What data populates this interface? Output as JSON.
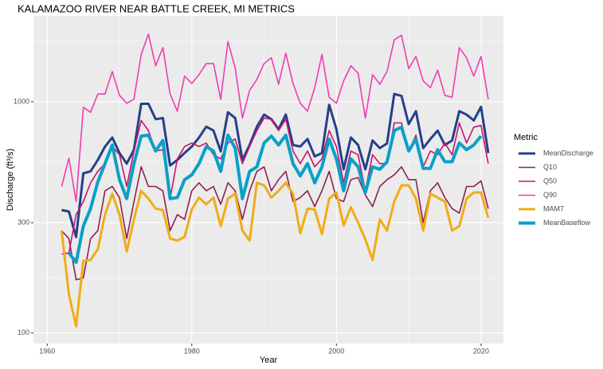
{
  "chart_data": {
    "type": "line",
    "title": "KALAMAZOO RIVER NEAR BATTLE CREEK, MI  METRICS",
    "xlabel": "Year",
    "ylabel": "Discharge (ft³/s)",
    "legend_title": "Metric",
    "legend_position": "right",
    "log_y": true,
    "grid": true,
    "xlim": [
      1958.1,
      2023.1
    ],
    "ylim": [
      90,
      2350
    ],
    "xticks": [
      1960,
      1980,
      2000,
      2020
    ],
    "yticks": [
      100,
      300,
      1000
    ],
    "x": [
      1962,
      1963,
      1964,
      1965,
      1966,
      1967,
      1968,
      1969,
      1970,
      1971,
      1972,
      1973,
      1974,
      1975,
      1976,
      1977,
      1978,
      1979,
      1980,
      1981,
      1982,
      1983,
      1984,
      1985,
      1986,
      1987,
      1988,
      1989,
      1990,
      1991,
      1992,
      1993,
      1994,
      1995,
      1996,
      1997,
      1998,
      1999,
      2000,
      2001,
      2002,
      2003,
      2004,
      2005,
      2006,
      2007,
      2008,
      2009,
      2010,
      2011,
      2012,
      2013,
      2014,
      2015,
      2016,
      2017,
      2018,
      2019,
      2020,
      2021
    ],
    "series": [
      {
        "name": "MeanDischarge",
        "color": "#253f8a",
        "linewidth": 3,
        "values": [
          340,
          335,
          260,
          490,
          500,
          560,
          640,
          700,
          600,
          540,
          620,
          980,
          980,
          840,
          850,
          530,
          560,
          600,
          640,
          700,
          780,
          750,
          610,
          900,
          850,
          560,
          650,
          780,
          880,
          840,
          760,
          880,
          650,
          640,
          690,
          580,
          600,
          970,
          760,
          510,
          700,
          650,
          510,
          680,
          630,
          660,
          1080,
          1060,
          800,
          910,
          630,
          690,
          750,
          650,
          680,
          910,
          880,
          830,
          950,
          600
        ]
      },
      {
        "name": "Q10",
        "color": "#8b2252",
        "linewidth": 1.6,
        "values": [
          277,
          256,
          170,
          173,
          256,
          277,
          412,
          430,
          385,
          256,
          370,
          523,
          430,
          430,
          412,
          277,
          325,
          310,
          412,
          446,
          412,
          430,
          360,
          446,
          412,
          310,
          412,
          500,
          523,
          412,
          460,
          500,
          370,
          385,
          412,
          352,
          412,
          500,
          381,
          370,
          460,
          470,
          395,
          352,
          430,
          460,
          483,
          523,
          460,
          460,
          300,
          412,
          446,
          385,
          345,
          330,
          430,
          430,
          455,
          345
        ]
      },
      {
        "name": "Q50",
        "color": "#c8146e",
        "linewidth": 1.6,
        "values": [
          219,
          222,
          325,
          370,
          446,
          500,
          540,
          640,
          590,
          430,
          612,
          830,
          750,
          612,
          620,
          381,
          566,
          640,
          663,
          640,
          663,
          590,
          566,
          663,
          690,
          540,
          640,
          750,
          850,
          840,
          750,
          840,
          612,
          540,
          612,
          523,
          566,
          750,
          640,
          446,
          612,
          590,
          412,
          590,
          540,
          540,
          810,
          810,
          612,
          717,
          523,
          612,
          590,
          663,
          590,
          810,
          663,
          776,
          790,
          540
        ]
      },
      {
        "name": "Q90",
        "color": "#f03cb4",
        "linewidth": 1.6,
        "values": [
          430,
          570,
          370,
          946,
          900,
          1080,
          1080,
          1350,
          1065,
          985,
          1025,
          1600,
          1960,
          1430,
          1713,
          1080,
          909,
          1290,
          1200,
          1310,
          1462,
          1462,
          1025,
          1820,
          1400,
          850,
          1120,
          1248,
          1462,
          1550,
          1190,
          1620,
          1200,
          985,
          909,
          1150,
          1600,
          1045,
          985,
          1230,
          1430,
          1330,
          850,
          1310,
          1190,
          1350,
          1850,
          1940,
          1390,
          1570,
          1230,
          1150,
          1370,
          1065,
          1045,
          1713,
          1550,
          1290,
          1570,
          1025
        ]
      },
      {
        "name": "MAM7",
        "color": "#f0ac16",
        "linewidth": 3,
        "values": [
          277,
          147,
          107,
          205,
          207,
          230,
          325,
          400,
          325,
          225,
          310,
          412,
          381,
          345,
          340,
          256,
          251,
          260,
          342,
          385,
          360,
          385,
          290,
          381,
          400,
          277,
          251,
          446,
          435,
          385,
          412,
          446,
          400,
          270,
          345,
          342,
          268,
          381,
          405,
          292,
          350,
          300,
          254,
          207,
          310,
          277,
          370,
          435,
          435,
          381,
          277,
          400,
          385,
          370,
          277,
          290,
          381,
          405,
          405,
          315
        ]
      },
      {
        "name": "MeanBaseflow",
        "color": "#0aa0c8",
        "linewidth": 4,
        "values": [
          null,
          222,
          202,
          290,
          345,
          450,
          540,
          650,
          460,
          381,
          540,
          710,
          717,
          612,
          680,
          381,
          385,
          460,
          483,
          540,
          640,
          612,
          500,
          717,
          630,
          381,
          500,
          523,
          663,
          710,
          650,
          717,
          540,
          478,
          540,
          446,
          523,
          690,
          566,
          412,
          566,
          523,
          405,
          523,
          510,
          550,
          750,
          776,
          612,
          690,
          515,
          515,
          620,
          550,
          550,
          663,
          620,
          650,
          710,
          null
        ]
      }
    ]
  }
}
